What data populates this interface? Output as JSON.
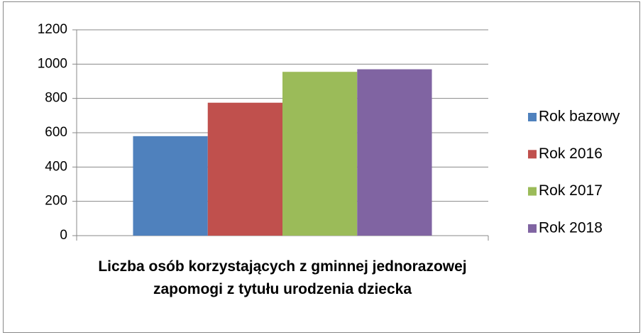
{
  "chart_data": {
    "type": "bar",
    "categories": [
      "Liczba osób korzystających z gminnej jednorazowej zapomogi z tytułu urodzenia dziecka"
    ],
    "series": [
      {
        "name": "Rok bazowy",
        "color": "#4f81bd",
        "values": [
          580
        ]
      },
      {
        "name": "Rok 2016",
        "color": "#c0504d",
        "values": [
          775
        ]
      },
      {
        "name": "Rok 2017",
        "color": "#9bbb59",
        "values": [
          955
        ]
      },
      {
        "name": "Rok 2018",
        "color": "#8064a2",
        "values": [
          970
        ]
      }
    ],
    "ylim": [
      0,
      1200
    ],
    "yticks": [
      0,
      200,
      400,
      600,
      800,
      1000,
      1200
    ],
    "grid": true,
    "legend": "right"
  }
}
